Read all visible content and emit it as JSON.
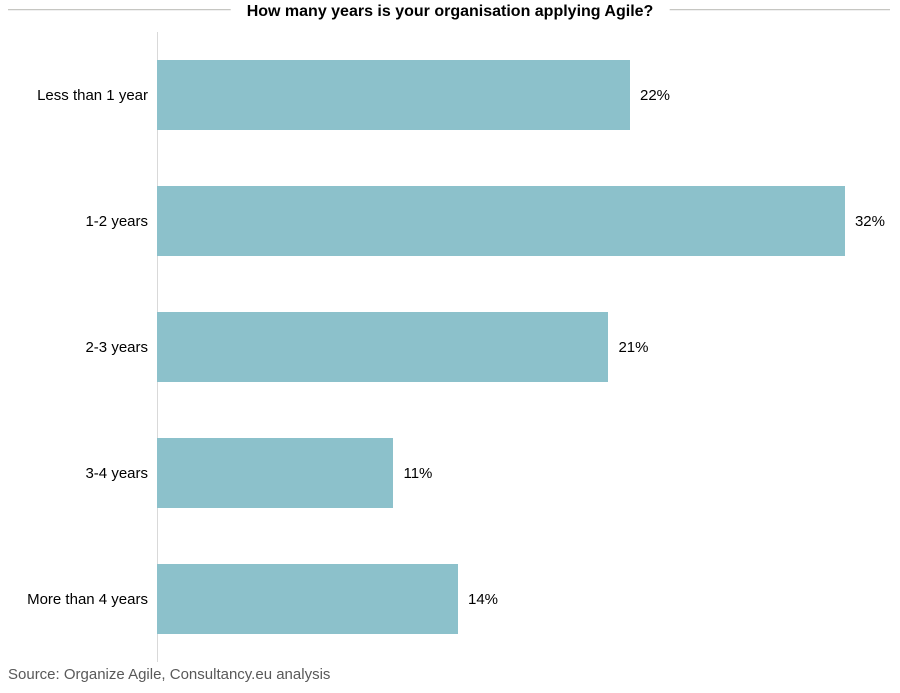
{
  "chart_data": {
    "type": "bar",
    "orientation": "horizontal",
    "title": "How many years is your organisation applying Agile?",
    "categories": [
      "Less than 1 year",
      "1-2 years",
      "2-3 years",
      "3-4 years",
      "More than 4 years"
    ],
    "values": [
      22,
      32,
      21,
      11,
      14
    ],
    "value_labels": [
      "22%",
      "32%",
      "21%",
      "11%",
      "14%"
    ],
    "xlabel": "",
    "ylabel": "",
    "xlim": [
      0,
      34.56
    ],
    "grid": "off",
    "legend": "none",
    "bar_color": "#8cc1cb",
    "axis_line_color": "#d9d9d9"
  },
  "divider": {
    "color": "#c6c6c2"
  },
  "source": {
    "text": "Source: Organize Agile, Consultancy.eu analysis",
    "color": "#595959"
  }
}
